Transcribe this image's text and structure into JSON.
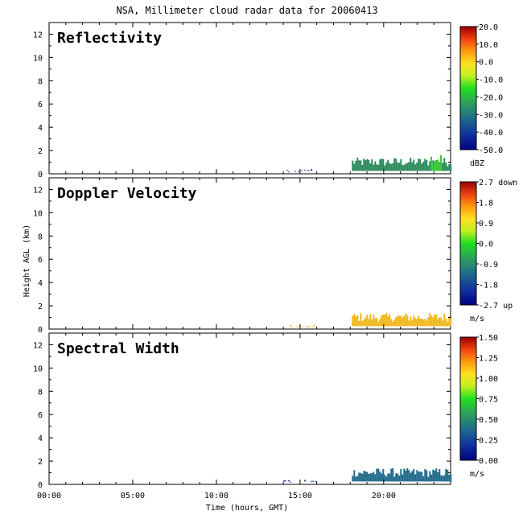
{
  "page_title": "NSA, Millimeter cloud radar data for 20060413",
  "ylabel": "Height AGL (km)",
  "xlabel": "Time (hours, GMT)",
  "x_ticks": [
    "00:00",
    "05:00",
    "10:00",
    "15:00",
    "20:00"
  ],
  "y_ticks": [
    "0",
    "2",
    "4",
    "6",
    "8",
    "10",
    "12"
  ],
  "chart_data": [
    {
      "type": "heatmap",
      "title": "Reflectivity",
      "xlim": [
        0,
        24
      ],
      "ylim": [
        0,
        13
      ],
      "colorbar": {
        "unit": "dBZ",
        "range": [
          -50,
          20
        ],
        "ticks": [
          "20.0",
          "10.0",
          "0.0",
          "-10.0",
          "-20.0",
          "-30.0",
          "-40.0",
          "-50.0"
        ]
      },
      "echo_segments": [
        {
          "x_start": 18.1,
          "x_end": 24.0,
          "top_km": 1.4,
          "color": "#2b8a5a"
        },
        {
          "x_start": 22.8,
          "x_end": 23.4,
          "top_km": 1.8,
          "color": "#3ec83e"
        },
        {
          "x_start": 14.0,
          "x_end": 16.0,
          "top_km": 0.4,
          "color": "#1f3a9a"
        }
      ]
    },
    {
      "type": "heatmap",
      "title": "Doppler Velocity",
      "xlim": [
        0,
        24
      ],
      "ylim": [
        0,
        13
      ],
      "colorbar": {
        "unit": "m/s",
        "range": [
          -2.7,
          2.7
        ],
        "ticks": [
          "2.7 down",
          "1.8",
          "0.9",
          "0.0",
          "-0.9",
          "-1.8",
          "-2.7 up"
        ]
      },
      "echo_segments": [
        {
          "x_start": 18.1,
          "x_end": 24.0,
          "top_km": 1.4,
          "color": "#f0b81c"
        },
        {
          "x_start": 14.0,
          "x_end": 16.0,
          "top_km": 0.4,
          "color": "#f0b81c"
        }
      ]
    },
    {
      "type": "heatmap",
      "title": "Spectral Width",
      "xlim": [
        0,
        24
      ],
      "ylim": [
        0,
        13
      ],
      "colorbar": {
        "unit": "m/s",
        "range": [
          0,
          1.5
        ],
        "ticks": [
          "1.50",
          "1.25",
          "1.00",
          "0.75",
          "0.50",
          "0.25",
          "0.00"
        ]
      },
      "echo_segments": [
        {
          "x_start": 18.1,
          "x_end": 24.0,
          "top_km": 1.4,
          "color": "#1f6a8a"
        },
        {
          "x_start": 14.0,
          "x_end": 16.0,
          "top_km": 0.4,
          "color": "#1f3a9a"
        }
      ]
    }
  ]
}
